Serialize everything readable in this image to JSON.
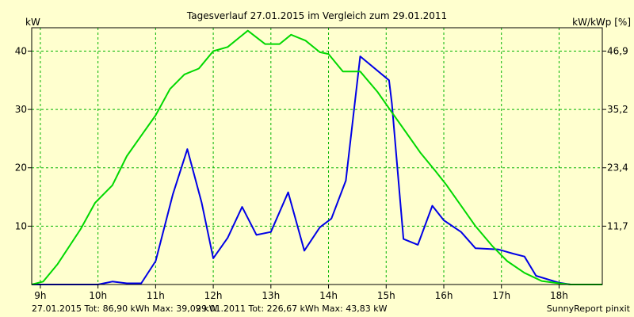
{
  "chart_data": {
    "type": "line",
    "title": "Tagesverlauf 27.01.2015 im Vergleich zum 29.01.2011",
    "ylabel_left": "kW",
    "ylabel_right": "kW/kWp [%]",
    "x_ticks": [
      "9h",
      "10h",
      "11h",
      "12h",
      "13h",
      "14h",
      "15h",
      "16h",
      "17h",
      "18h"
    ],
    "xlim": [
      8.85,
      18.75
    ],
    "ylim": [
      0,
      44
    ],
    "y_ticks_left": [
      "10",
      "20",
      "30",
      "40"
    ],
    "y_ticks_right": [
      "11,7",
      "23,4",
      "35,2",
      "46,9"
    ],
    "grid": true,
    "colors": {
      "background": "#ffffcf",
      "grid": "#00b400",
      "axis": "#000000"
    },
    "series": [
      {
        "name": "27.01.2015",
        "color": "#0000e6",
        "points": [
          [
            8.85,
            0
          ],
          [
            9.5,
            0
          ],
          [
            10.0,
            0
          ],
          [
            10.25,
            0.5
          ],
          [
            10.5,
            0.2
          ],
          [
            10.75,
            0.2
          ],
          [
            11.0,
            4
          ],
          [
            11.3,
            15.5
          ],
          [
            11.55,
            23.2
          ],
          [
            11.8,
            14
          ],
          [
            12.0,
            4.5
          ],
          [
            12.25,
            8
          ],
          [
            12.5,
            13.3
          ],
          [
            12.75,
            8.5
          ],
          [
            13.0,
            9
          ],
          [
            13.3,
            15.8
          ],
          [
            13.58,
            5.8
          ],
          [
            13.85,
            9.8
          ],
          [
            14.05,
            11.3
          ],
          [
            14.3,
            17.8
          ],
          [
            14.55,
            39.1
          ],
          [
            15.05,
            35
          ],
          [
            15.1,
            31
          ],
          [
            15.3,
            7.8
          ],
          [
            15.55,
            6.8
          ],
          [
            15.8,
            13.5
          ],
          [
            16.0,
            11
          ],
          [
            16.3,
            9
          ],
          [
            16.55,
            6.2
          ],
          [
            16.95,
            6
          ],
          [
            17.2,
            5.3
          ],
          [
            17.4,
            4.8
          ],
          [
            17.6,
            1.5
          ],
          [
            18.0,
            0.3
          ],
          [
            18.2,
            0
          ],
          [
            18.75,
            0
          ]
        ]
      },
      {
        "name": "29.01.2011",
        "color": "#00d800",
        "points": [
          [
            8.85,
            0
          ],
          [
            9.05,
            0.5
          ],
          [
            9.3,
            3.5
          ],
          [
            9.7,
            9.5
          ],
          [
            9.95,
            14
          ],
          [
            10.25,
            17
          ],
          [
            10.5,
            22
          ],
          [
            10.75,
            25.5
          ],
          [
            11.0,
            29
          ],
          [
            11.25,
            33.5
          ],
          [
            11.5,
            36
          ],
          [
            11.75,
            37
          ],
          [
            12.0,
            40
          ],
          [
            12.25,
            40.7
          ],
          [
            12.45,
            42.3
          ],
          [
            12.6,
            43.5
          ],
          [
            12.9,
            41.2
          ],
          [
            13.15,
            41.2
          ],
          [
            13.35,
            42.8
          ],
          [
            13.6,
            41.8
          ],
          [
            13.85,
            39.8
          ],
          [
            14.0,
            39.5
          ],
          [
            14.25,
            36.5
          ],
          [
            14.55,
            36.5
          ],
          [
            14.85,
            33
          ],
          [
            15.1,
            29.5
          ],
          [
            15.35,
            26
          ],
          [
            15.6,
            22.5
          ],
          [
            15.85,
            19.5
          ],
          [
            16.05,
            17
          ],
          [
            16.3,
            13.5
          ],
          [
            16.55,
            10
          ],
          [
            16.85,
            6.5
          ],
          [
            17.1,
            4
          ],
          [
            17.4,
            2
          ],
          [
            17.7,
            0.6
          ],
          [
            18.0,
            0.2
          ],
          [
            18.2,
            0
          ],
          [
            18.75,
            0
          ]
        ]
      }
    ]
  },
  "footer": {
    "line1_text": "27.01.2015 Tot: 86,90 kWh Max: 39,09 kW",
    "line1_color": "#0000e6",
    "line2_text": "29.01.2011 Tot: 226,67 kWh Max: 43,83 kW",
    "line2_color": "#00d800",
    "credit": "SunnyReport pinxit"
  }
}
